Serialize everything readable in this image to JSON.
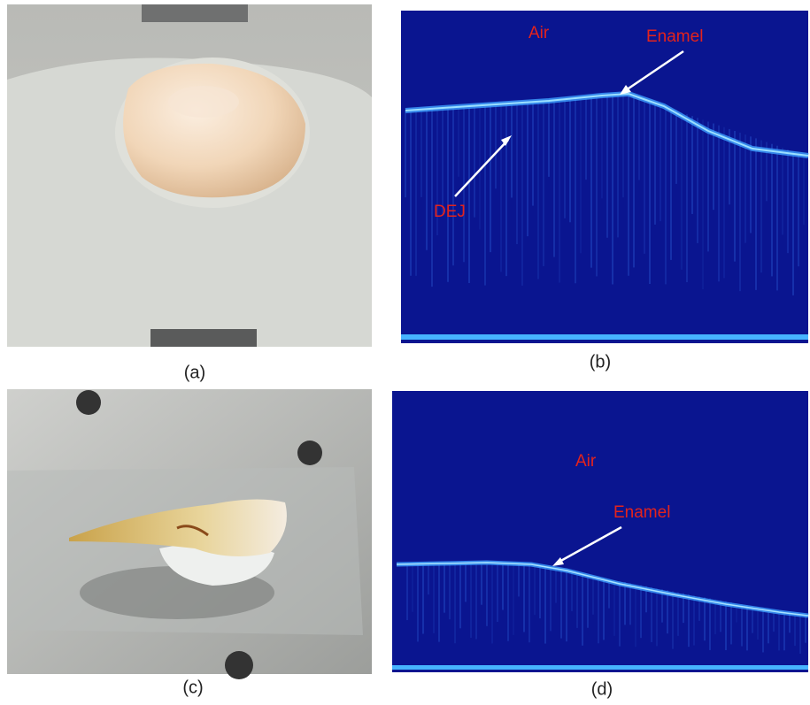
{
  "panels": [
    {
      "label": "(a)"
    },
    {
      "label": "(b)",
      "annotations": [
        "Air",
        "Enamel",
        "DEJ"
      ]
    },
    {
      "label": "(c)"
    },
    {
      "label": "(d)",
      "annotations": [
        "Air",
        "Enamel"
      ]
    }
  ]
}
